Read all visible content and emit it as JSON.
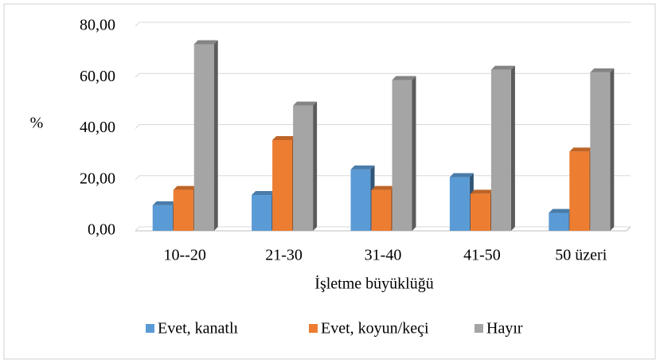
{
  "chart_data": {
    "type": "bar",
    "y_label": "%",
    "x_label": "İşletme  büyüklüğü",
    "categories": [
      "10--20",
      "21-30",
      "31-40",
      "41-50",
      "50 üzeri"
    ],
    "series": [
      {
        "name": "Evet, kanatlı",
        "color": "#5b9bd5",
        "values": [
          10,
          14,
          24,
          21,
          7
        ]
      },
      {
        "name": "Evet, koyun/keçi",
        "color": "#ed7d31",
        "values": [
          16,
          35.5,
          16,
          14.5,
          31
        ]
      },
      {
        "name": "Hayır",
        "color": "#a5a5a5",
        "values": [
          73,
          49,
          59,
          63,
          62
        ]
      }
    ],
    "ylim": [
      0,
      80
    ],
    "yticks": [
      {
        "value": 0,
        "label": "0,00"
      },
      {
        "value": 20,
        "label": "20,00"
      },
      {
        "value": 40,
        "label": "40,00"
      },
      {
        "value": 60,
        "label": "60,00"
      },
      {
        "value": 80,
        "label": "80,00"
      }
    ],
    "grid": true,
    "legend": "bottom"
  }
}
